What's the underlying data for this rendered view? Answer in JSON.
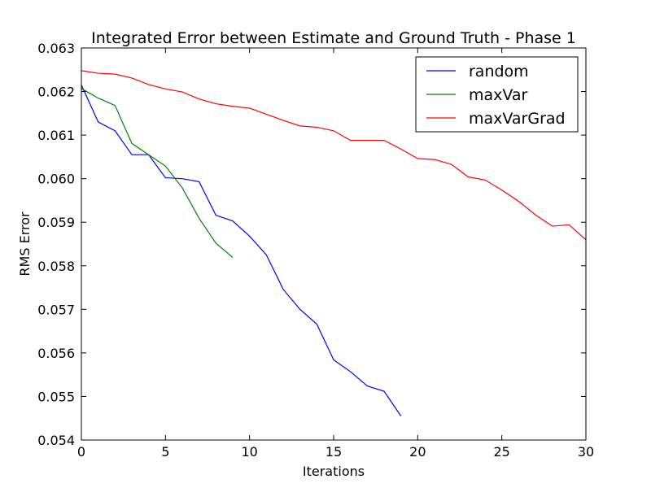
{
  "chart_data": {
    "type": "line",
    "title": "Integrated Error between Estimate and Ground Truth - Phase 1",
    "xlabel": "Iterations",
    "ylabel": "RMS Error",
    "xlim": [
      0,
      30
    ],
    "ylim": [
      0.054,
      0.063
    ],
    "xticks": [
      0,
      5,
      10,
      15,
      20,
      25,
      30
    ],
    "xtick_labels": [
      "0",
      "5",
      "10",
      "15",
      "20",
      "25",
      "30"
    ],
    "yticks": [
      0.054,
      0.055,
      0.056,
      0.057,
      0.058,
      0.059,
      0.06,
      0.061,
      0.062,
      0.063
    ],
    "ytick_labels": [
      "0.054",
      "0.055",
      "0.056",
      "0.057",
      "0.058",
      "0.059",
      "0.060",
      "0.061",
      "0.062",
      "0.063"
    ],
    "grid": false,
    "legend_position": "top-right",
    "series": [
      {
        "name": "random",
        "color": "#0000ff",
        "x": [
          0,
          1,
          2,
          3,
          4,
          5,
          6,
          7,
          8,
          9,
          10,
          11,
          12,
          13,
          14,
          15,
          16,
          17,
          18,
          19
        ],
        "y": [
          0.06215,
          0.0613,
          0.0611,
          0.06055,
          0.06055,
          0.06002,
          0.06,
          0.05993,
          0.05916,
          0.05903,
          0.05868,
          0.05825,
          0.05746,
          0.057,
          0.05666,
          0.05584,
          0.05557,
          0.05524,
          0.05512,
          0.05455
        ]
      },
      {
        "name": "maxVar",
        "color": "#008000",
        "x": [
          0,
          1,
          2,
          3,
          4,
          5,
          6,
          7,
          8,
          9
        ],
        "y": [
          0.06207,
          0.06185,
          0.06168,
          0.06081,
          0.06055,
          0.06029,
          0.05979,
          0.05909,
          0.05852,
          0.05819
        ]
      },
      {
        "name": "maxVarGrad",
        "color": "#ff0000",
        "x": [
          0,
          1,
          2,
          3,
          4,
          5,
          6,
          7,
          8,
          9,
          10,
          11,
          12,
          13,
          14,
          15,
          16,
          17,
          18,
          19,
          20,
          21,
          22,
          23,
          24,
          25,
          26,
          27,
          28,
          29,
          30
        ],
        "y": [
          0.06248,
          0.06242,
          0.0624,
          0.06231,
          0.06216,
          0.06206,
          0.06199,
          0.06183,
          0.06172,
          0.06166,
          0.06162,
          0.06148,
          0.06134,
          0.06121,
          0.06118,
          0.0611,
          0.06088,
          0.06088,
          0.06088,
          0.06068,
          0.06046,
          0.06044,
          0.06033,
          0.06004,
          0.05997,
          0.05974,
          0.05948,
          0.05917,
          0.05891,
          0.05894,
          0.0586
        ]
      }
    ]
  }
}
